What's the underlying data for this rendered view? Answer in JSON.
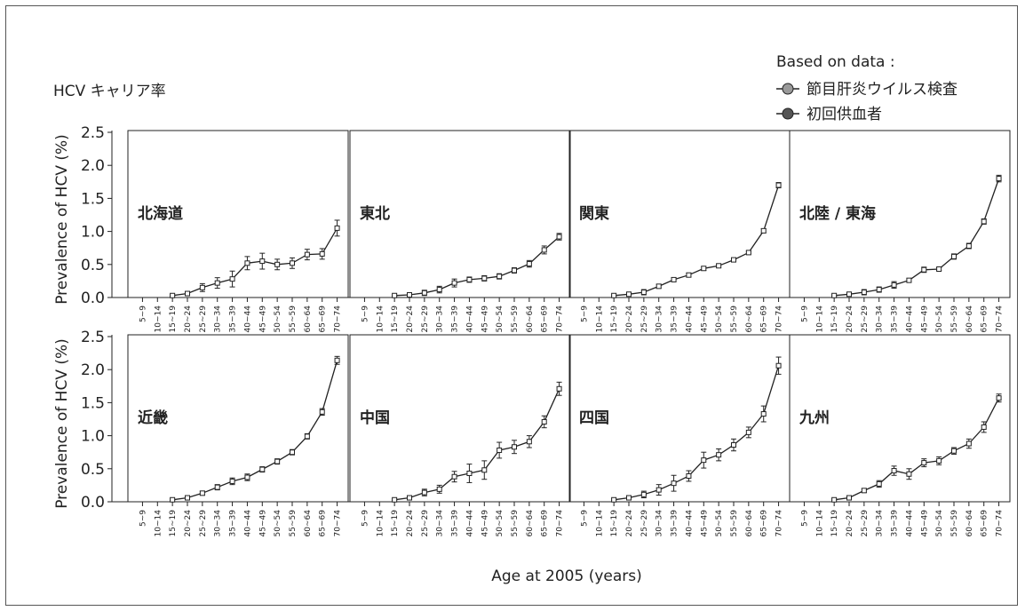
{
  "header": {
    "title": "HCV キャリア率",
    "legend_heading": "Based on data :",
    "legend_items": [
      {
        "label": "節目肝炎ウイルス検査",
        "color": "#9a9a9a"
      },
      {
        "label": "初回供血者",
        "color": "#555555"
      }
    ]
  },
  "chart_data": {
    "type": "line",
    "ylabel": "Prevalence of HCV (%)",
    "xlabel": "Age at 2005 (years)",
    "ylim": [
      0,
      2.5
    ],
    "yticks": [
      "0.0",
      "0.5",
      "1.0",
      "1.5",
      "2.0",
      "2.5"
    ],
    "categories": [
      "5~9",
      "10~14",
      "15~19",
      "20~24",
      "25~29",
      "30~34",
      "35~39",
      "40~44",
      "45~49",
      "50~54",
      "55~59",
      "60~64",
      "65~69",
      "70~74"
    ],
    "panels": [
      {
        "name": "北海道",
        "values": [
          null,
          null,
          0.03,
          0.06,
          0.15,
          0.22,
          0.28,
          0.52,
          0.55,
          0.5,
          0.52,
          0.65,
          0.66,
          1.05
        ],
        "err": [
          0,
          0,
          0.01,
          0.02,
          0.06,
          0.08,
          0.12,
          0.1,
          0.12,
          0.08,
          0.08,
          0.08,
          0.08,
          0.12
        ]
      },
      {
        "name": "東北",
        "values": [
          null,
          null,
          0.03,
          0.04,
          0.07,
          0.12,
          0.22,
          0.27,
          0.29,
          0.32,
          0.41,
          0.51,
          0.72,
          0.92
        ],
        "err": [
          0,
          0,
          0.01,
          0.02,
          0.04,
          0.05,
          0.06,
          0.04,
          0.04,
          0.04,
          0.04,
          0.05,
          0.06,
          0.05
        ]
      },
      {
        "name": "関東",
        "values": [
          null,
          null,
          0.03,
          0.05,
          0.08,
          0.17,
          0.27,
          0.34,
          0.44,
          0.48,
          0.57,
          0.68,
          1.01,
          1.7
        ],
        "err": [
          0,
          0,
          0.01,
          0.01,
          0.04,
          0.03,
          0.03,
          0.03,
          0.03,
          0.02,
          0.02,
          0.02,
          0.03,
          0.04
        ]
      },
      {
        "name": "北陸 / 東海",
        "values": [
          null,
          null,
          0.03,
          0.05,
          0.08,
          0.12,
          0.19,
          0.26,
          0.42,
          0.43,
          0.62,
          0.78,
          1.15,
          1.8
        ],
        "err": [
          0,
          0,
          0.01,
          0.02,
          0.04,
          0.04,
          0.05,
          0.02,
          0.04,
          0.02,
          0.04,
          0.04,
          0.04,
          0.05
        ]
      },
      {
        "name": "近畿",
        "values": [
          null,
          null,
          0.03,
          0.06,
          0.13,
          0.22,
          0.31,
          0.37,
          0.49,
          0.61,
          0.75,
          0.99,
          1.36,
          2.14
        ],
        "err": [
          0,
          0,
          0.01,
          0.01,
          0.03,
          0.04,
          0.05,
          0.05,
          0.04,
          0.04,
          0.04,
          0.04,
          0.05,
          0.06
        ]
      },
      {
        "name": "中国",
        "values": [
          null,
          null,
          0.03,
          0.06,
          0.14,
          0.19,
          0.38,
          0.43,
          0.48,
          0.78,
          0.83,
          0.91,
          1.21,
          1.71
        ],
        "err": [
          0,
          0,
          0.01,
          0.02,
          0.05,
          0.06,
          0.08,
          0.14,
          0.14,
          0.12,
          0.1,
          0.09,
          0.09,
          0.1
        ]
      },
      {
        "name": "四国",
        "values": [
          null,
          null,
          0.03,
          0.06,
          0.11,
          0.18,
          0.28,
          0.39,
          0.63,
          0.71,
          0.86,
          1.05,
          1.33,
          2.06
        ],
        "err": [
          0,
          0,
          0.01,
          0.02,
          0.05,
          0.08,
          0.12,
          0.08,
          0.12,
          0.09,
          0.09,
          0.08,
          0.12,
          0.13
        ]
      },
      {
        "name": "九州",
        "values": [
          null,
          null,
          0.03,
          0.06,
          0.17,
          0.27,
          0.47,
          0.42,
          0.59,
          0.62,
          0.77,
          0.88,
          1.13,
          1.57
        ],
        "err": [
          0,
          0,
          0.01,
          0.01,
          0.03,
          0.05,
          0.07,
          0.08,
          0.06,
          0.06,
          0.05,
          0.07,
          0.08,
          0.06
        ]
      }
    ]
  }
}
